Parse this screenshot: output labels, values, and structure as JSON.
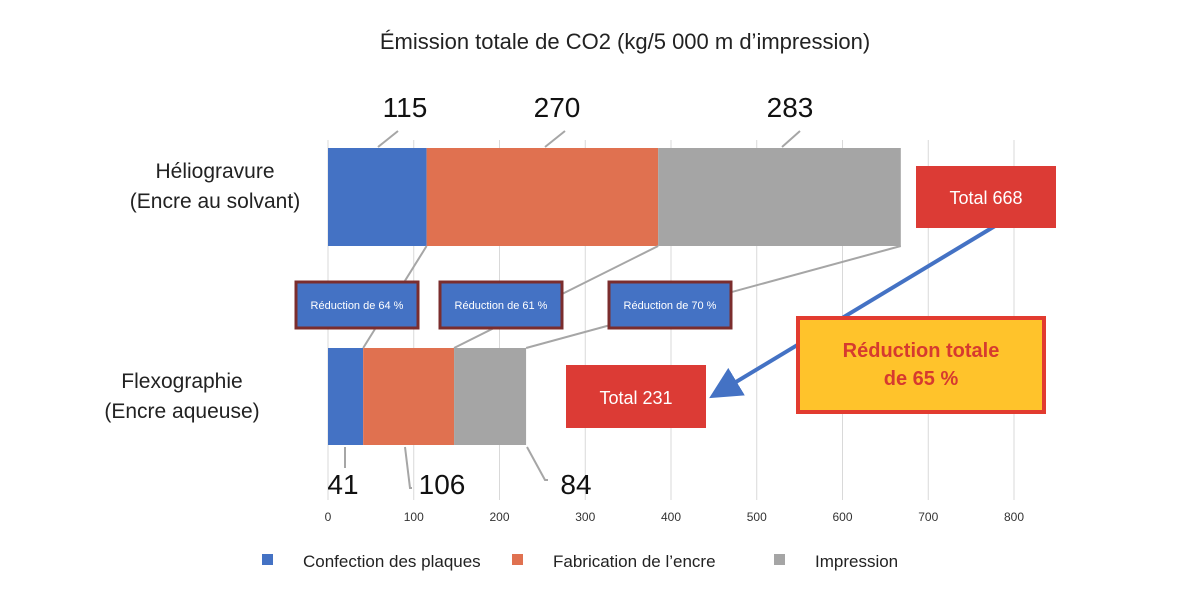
{
  "chart_data": {
    "type": "bar",
    "orientation": "horizontal",
    "stacked": true,
    "title": "Émission totale de CO2 (kg/5 000 m d’impression)",
    "categories": [
      [
        "Héliogravure",
        "(Encre au solvant)"
      ],
      [
        "Flexographie",
        "(Encre aqueuse)"
      ]
    ],
    "series": [
      {
        "name": "Confection des plaques",
        "color": "#4472c4",
        "values": [
          115,
          41
        ]
      },
      {
        "name": "Fabrication de l’encre",
        "color": "#e07150",
        "values": [
          270,
          106
        ]
      },
      {
        "name": "Impression",
        "color": "#a5a5a5",
        "values": [
          283,
          84
        ]
      }
    ],
    "xlim": [
      0,
      800
    ],
    "xticks": [
      0,
      100,
      200,
      300,
      400,
      500,
      600,
      700,
      800
    ],
    "grid": "vertical",
    "legend_position": "bottom",
    "annotations": {
      "reductions": [
        "Réduction de 64 %",
        "Réduction de 61 %",
        "Réduction de 70 %"
      ],
      "total_top": "Total 668",
      "total_bottom": "Total 231",
      "summary": [
        "Réduction totale",
        "de 65 %"
      ]
    },
    "colors": {
      "annotation_red": "#dc3b35",
      "summary_fill": "#ffc32b",
      "summary_border": "#e23b2f",
      "reduction_fill": "#4472c4",
      "reduction_border": "#7b2d2d",
      "arrow": "#4472c4"
    }
  }
}
